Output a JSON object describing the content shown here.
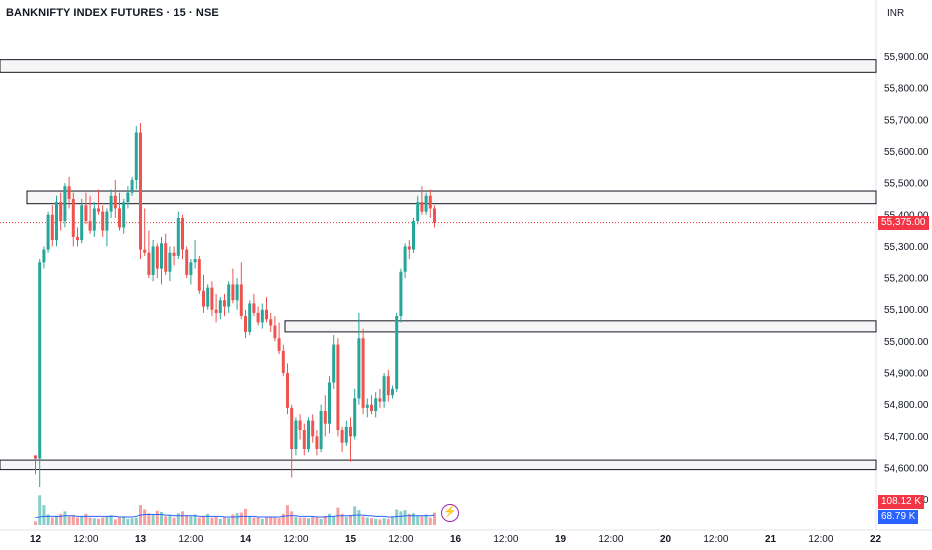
{
  "header": {
    "title": "BANKNIFTY INDEX FUTURES · 15 · NSE",
    "currency": "INR"
  },
  "colors": {
    "up": "#26a69a",
    "down": "#ef5350",
    "volume_ma": "#2962ff",
    "last_price": "#f23645",
    "volume_badge_down": "#f23645",
    "volume_badge_ma": "#2962ff"
  },
  "chart_data": {
    "type": "candlestick",
    "y_axis": {
      "range": [
        54420,
        55990
      ],
      "ticks": [
        "55,900.00",
        "55,800.00",
        "55,700.00",
        "55,600.00",
        "55,500.00",
        "55,400.00",
        "55,300.00",
        "55,200.00",
        "55,100.00",
        "55,000.00",
        "54,900.00",
        "54,800.00",
        "54,700.00",
        "54,600.00",
        "54,500.00"
      ],
      "tick_values": [
        55900,
        55800,
        55700,
        55600,
        55500,
        55400,
        55300,
        55200,
        55100,
        55000,
        54900,
        54800,
        54700,
        54600,
        54500
      ]
    },
    "x_axis": {
      "ticks": [
        {
          "label": "12",
          "bold": true,
          "bar": 0
        },
        {
          "label": "12:00",
          "bold": false,
          "bar": 12
        },
        {
          "label": "13",
          "bold": true,
          "bar": 25
        },
        {
          "label": "12:00",
          "bold": false,
          "bar": 37
        },
        {
          "label": "14",
          "bold": true,
          "bar": 50
        },
        {
          "label": "12:00",
          "bold": false,
          "bar": 62
        },
        {
          "label": "15",
          "bold": true,
          "bar": 75
        },
        {
          "label": "12:00",
          "bold": false,
          "bar": 87
        },
        {
          "label": "16",
          "bold": true,
          "bar": 100
        },
        {
          "label": "12:00",
          "bold": false,
          "bar": 112
        },
        {
          "label": "19",
          "bold": true,
          "bar": 125
        },
        {
          "label": "12:00",
          "bold": false,
          "bar": 137
        },
        {
          "label": "20",
          "bold": true,
          "bar": 150
        },
        {
          "label": "12:00",
          "bold": false,
          "bar": 162
        },
        {
          "label": "21",
          "bold": true,
          "bar": 175
        },
        {
          "label": "12:00",
          "bold": false,
          "bar": 187
        },
        {
          "label": "22",
          "bold": true,
          "bar": 200
        }
      ]
    },
    "zones": [
      {
        "top": 55890,
        "bottom": 55850
      },
      {
        "top": 55475,
        "bottom": 55435
      },
      {
        "top": 55065,
        "bottom": 55030
      },
      {
        "top": 54625,
        "bottom": 54595
      }
    ],
    "last_price": {
      "value": 55375,
      "label": "55,375.00"
    },
    "volume": {
      "last_label": "108.12 K",
      "ma_label": "68.79 K"
    },
    "ohlc": [
      [
        54640,
        54640,
        54580,
        54630
      ],
      [
        54630,
        55260,
        54540,
        55250
      ],
      [
        55250,
        55300,
        55230,
        55290
      ],
      [
        55290,
        55410,
        55280,
        55400
      ],
      [
        55400,
        55430,
        55300,
        55320
      ],
      [
        55320,
        55460,
        55300,
        55440
      ],
      [
        55440,
        55470,
        55350,
        55380
      ],
      [
        55380,
        55500,
        55360,
        55490
      ],
      [
        55490,
        55520,
        55420,
        55450
      ],
      [
        55450,
        55470,
        55300,
        55330
      ],
      [
        55330,
        55360,
        55300,
        55320
      ],
      [
        55320,
        55450,
        55310,
        55430
      ],
      [
        55430,
        55470,
        55370,
        55380
      ],
      [
        55380,
        55460,
        55340,
        55350
      ],
      [
        55350,
        55440,
        55330,
        55420
      ],
      [
        55420,
        55480,
        55400,
        55410
      ],
      [
        55410,
        55430,
        55330,
        55350
      ],
      [
        55350,
        55420,
        55300,
        55410
      ],
      [
        55410,
        55480,
        55390,
        55460
      ],
      [
        55460,
        55510,
        55390,
        55420
      ],
      [
        55420,
        55470,
        55350,
        55360
      ],
      [
        55360,
        55450,
        55340,
        55440
      ],
      [
        55440,
        55490,
        55420,
        55470
      ],
      [
        55470,
        55520,
        55460,
        55510
      ],
      [
        55510,
        55680,
        55480,
        55660
      ],
      [
        55660,
        55690,
        55260,
        55290
      ],
      [
        55290,
        55420,
        55270,
        55280
      ],
      [
        55280,
        55350,
        55200,
        55210
      ],
      [
        55210,
        55320,
        55190,
        55300
      ],
      [
        55300,
        55310,
        55200,
        55230
      ],
      [
        55230,
        55330,
        55180,
        55310
      ],
      [
        55310,
        55340,
        55210,
        55220
      ],
      [
        55220,
        55300,
        55190,
        55280
      ],
      [
        55280,
        55300,
        55240,
        55270
      ],
      [
        55270,
        55410,
        55260,
        55390
      ],
      [
        55390,
        55400,
        55260,
        55290
      ],
      [
        55290,
        55300,
        55200,
        55210
      ],
      [
        55210,
        55260,
        55180,
        55250
      ],
      [
        55250,
        55320,
        55230,
        55260
      ],
      [
        55260,
        55270,
        55150,
        55160
      ],
      [
        55160,
        55210,
        55090,
        55110
      ],
      [
        55110,
        55180,
        55100,
        55170
      ],
      [
        55170,
        55190,
        55080,
        55100
      ],
      [
        55100,
        55150,
        55060,
        55090
      ],
      [
        55090,
        55140,
        55070,
        55130
      ],
      [
        55130,
        55150,
        55080,
        55110
      ],
      [
        55110,
        55190,
        55090,
        55180
      ],
      [
        55180,
        55230,
        55120,
        55130
      ],
      [
        55130,
        55200,
        55100,
        55180
      ],
      [
        55180,
        55250,
        55070,
        55080
      ],
      [
        55080,
        55100,
        55010,
        55030
      ],
      [
        55030,
        55130,
        55020,
        55120
      ],
      [
        55120,
        55150,
        55080,
        55090
      ],
      [
        55090,
        55110,
        55050,
        55060
      ],
      [
        55060,
        55120,
        55040,
        55100
      ],
      [
        55100,
        55140,
        55060,
        55070
      ],
      [
        55070,
        55090,
        55030,
        55050
      ],
      [
        55050,
        55080,
        55000,
        55010
      ],
      [
        55010,
        55060,
        54960,
        54970
      ],
      [
        54970,
        54990,
        54890,
        54900
      ],
      [
        54900,
        54930,
        54770,
        54790
      ],
      [
        54790,
        54800,
        54570,
        54660
      ],
      [
        54660,
        54760,
        54640,
        54750
      ],
      [
        54750,
        54770,
        54690,
        54720
      ],
      [
        54720,
        54740,
        54640,
        54660
      ],
      [
        54660,
        54760,
        54650,
        54750
      ],
      [
        54750,
        54770,
        54680,
        54700
      ],
      [
        54700,
        54720,
        54640,
        54660
      ],
      [
        54660,
        54800,
        54650,
        54780
      ],
      [
        54780,
        54830,
        54700,
        54740
      ],
      [
        54740,
        54890,
        54710,
        54870
      ],
      [
        54870,
        55020,
        54850,
        54990
      ],
      [
        54990,
        55010,
        54700,
        54720
      ],
      [
        54720,
        54730,
        54650,
        54680
      ],
      [
        54680,
        54750,
        54670,
        54730
      ],
      [
        54730,
        54760,
        54620,
        54700
      ],
      [
        54700,
        54850,
        54690,
        54820
      ],
      [
        54820,
        55090,
        54800,
        55010
      ],
      [
        55010,
        55040,
        54770,
        54790
      ],
      [
        54790,
        54820,
        54760,
        54800
      ],
      [
        54800,
        54830,
        54770,
        54780
      ],
      [
        54780,
        54840,
        54760,
        54820
      ],
      [
        54820,
        54850,
        54790,
        54810
      ],
      [
        54810,
        54900,
        54790,
        54890
      ],
      [
        54890,
        54910,
        54810,
        54830
      ],
      [
        54830,
        54860,
        54820,
        54850
      ],
      [
        54850,
        55090,
        54840,
        55080
      ],
      [
        55080,
        55230,
        55060,
        55220
      ],
      [
        55220,
        55310,
        55200,
        55300
      ],
      [
        55300,
        55320,
        55260,
        55290
      ],
      [
        55290,
        55390,
        55280,
        55380
      ],
      [
        55380,
        55460,
        55370,
        55440
      ],
      [
        55440,
        55490,
        55400,
        55410
      ],
      [
        55410,
        55470,
        55400,
        55460
      ],
      [
        55460,
        55480,
        55390,
        55420
      ],
      [
        55420,
        55430,
        55360,
        55375
      ]
    ],
    "volumes": [
      6,
      48,
      32,
      17,
      12,
      15,
      18,
      22,
      14,
      16,
      12,
      14,
      18,
      12,
      11,
      10,
      12,
      14,
      16,
      9,
      12,
      14,
      10,
      11,
      12,
      32,
      25,
      19,
      17,
      23,
      21,
      14,
      16,
      12,
      19,
      22,
      16,
      14,
      17,
      12,
      14,
      18,
      12,
      13,
      10,
      12,
      11,
      17,
      19,
      20,
      26,
      14,
      12,
      12,
      10,
      13,
      14,
      12,
      11,
      18,
      32,
      22,
      13,
      12,
      12,
      11,
      14,
      12,
      10,
      15,
      18,
      14,
      28,
      18,
      13,
      16,
      30,
      24,
      14,
      12,
      11,
      10,
      9,
      11,
      10,
      14,
      25,
      22,
      24,
      18,
      19,
      15,
      14,
      17,
      12,
      20
    ],
    "volume_ma": [
      12,
      13,
      14,
      14,
      14,
      14,
      14,
      15,
      15,
      15,
      14,
      14,
      14,
      14,
      14,
      14,
      14,
      14,
      14,
      14,
      13,
      13,
      13,
      13,
      14,
      16,
      17,
      17,
      17,
      17,
      17,
      16,
      16,
      15,
      15,
      15,
      15,
      15,
      15,
      14,
      14,
      14,
      14,
      14,
      14,
      13,
      13,
      13,
      13,
      14,
      14,
      14,
      14,
      13,
      13,
      13,
      13,
      13,
      13,
      14,
      15,
      15,
      15,
      14,
      14,
      14,
      14,
      13,
      13,
      13,
      14,
      14,
      15,
      15,
      15,
      15,
      16,
      16,
      16,
      15,
      15,
      14,
      14,
      14,
      13,
      13,
      14,
      14,
      15,
      15,
      15,
      15,
      15,
      15,
      15,
      16
    ]
  }
}
